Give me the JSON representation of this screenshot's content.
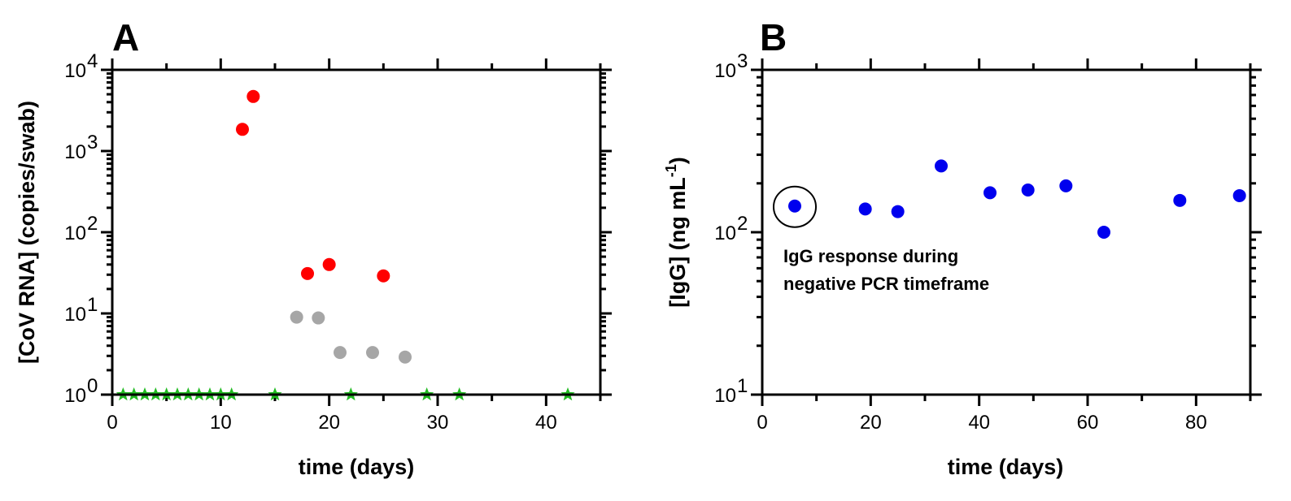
{
  "chart_data": [
    {
      "panel": "A",
      "type": "scatter",
      "xlabel": "time (days)",
      "ylabel": "[CoV RNA] (copies/swab)",
      "xlim": [
        0,
        45
      ],
      "ylim": [
        1,
        10000
      ],
      "yscale": "log",
      "xticks": [
        "0",
        "10",
        "20",
        "30",
        "40"
      ],
      "yticks": [
        {
          "base": "10",
          "exp": "0"
        },
        {
          "base": "10",
          "exp": "1"
        },
        {
          "base": "10",
          "exp": "2"
        },
        {
          "base": "10",
          "exp": "3"
        },
        {
          "base": "10",
          "exp": "4"
        }
      ],
      "series": [
        {
          "color": "#ff0000",
          "marker": "circle",
          "points": [
            [
              12,
              1850
            ],
            [
              13,
              4700
            ],
            [
              18,
              31
            ],
            [
              20,
              40
            ],
            [
              25,
              29
            ]
          ]
        },
        {
          "color": "#a6a6a6",
          "marker": "circle",
          "points": [
            [
              17,
              9
            ],
            [
              19,
              8.8
            ],
            [
              21,
              3.3
            ],
            [
              24,
              3.3
            ],
            [
              27,
              2.9
            ]
          ]
        },
        {
          "color": "#22bb22",
          "marker": "star",
          "points": [
            [
              1,
              1
            ],
            [
              2,
              1
            ],
            [
              3,
              1
            ],
            [
              4,
              1
            ],
            [
              5,
              1
            ],
            [
              6,
              1
            ],
            [
              7,
              1
            ],
            [
              8,
              1
            ],
            [
              9,
              1
            ],
            [
              10,
              1
            ],
            [
              11,
              1
            ],
            [
              15,
              1
            ],
            [
              22,
              1
            ],
            [
              29,
              1
            ],
            [
              32,
              1
            ],
            [
              42,
              1
            ]
          ]
        }
      ]
    },
    {
      "panel": "B",
      "type": "scatter",
      "xlabel": "time (days)",
      "ylabel": "[IgG] (ng mL-1)",
      "xlim": [
        0,
        90
      ],
      "ylim": [
        10,
        1000
      ],
      "yscale": "log",
      "xticks": [
        "0",
        "20",
        "40",
        "60",
        "80"
      ],
      "yticks": [
        {
          "base": "10",
          "exp": "1"
        },
        {
          "base": "10",
          "exp": "2"
        },
        {
          "base": "10",
          "exp": "3"
        }
      ],
      "series": [
        {
          "color": "#0000ee",
          "marker": "circle",
          "points": [
            [
              6,
              145
            ],
            [
              19,
              139
            ],
            [
              25,
              134
            ],
            [
              33,
              256
            ],
            [
              42,
              175
            ],
            [
              49,
              182
            ],
            [
              56,
              193
            ],
            [
              63,
              100
            ],
            [
              77,
              157
            ],
            [
              88,
              168
            ]
          ]
        }
      ],
      "annotation": {
        "lines": [
          "IgG response during",
          "negative PCR timeframe"
        ],
        "circled_point": [
          6,
          145
        ]
      }
    }
  ],
  "labels": {
    "panel_a": "A",
    "panel_b": "B",
    "a_xlabel": "time (days)",
    "a_ylabel": "[CoV RNA] (copies/swab)",
    "b_xlabel": "time (days)",
    "b_ylabel_main": "[IgG] (ng mL",
    "b_ylabel_sup": "-1",
    "b_ylabel_end": ")",
    "annotation_line1": "IgG response during",
    "annotation_line2": "negative PCR timeframe"
  }
}
